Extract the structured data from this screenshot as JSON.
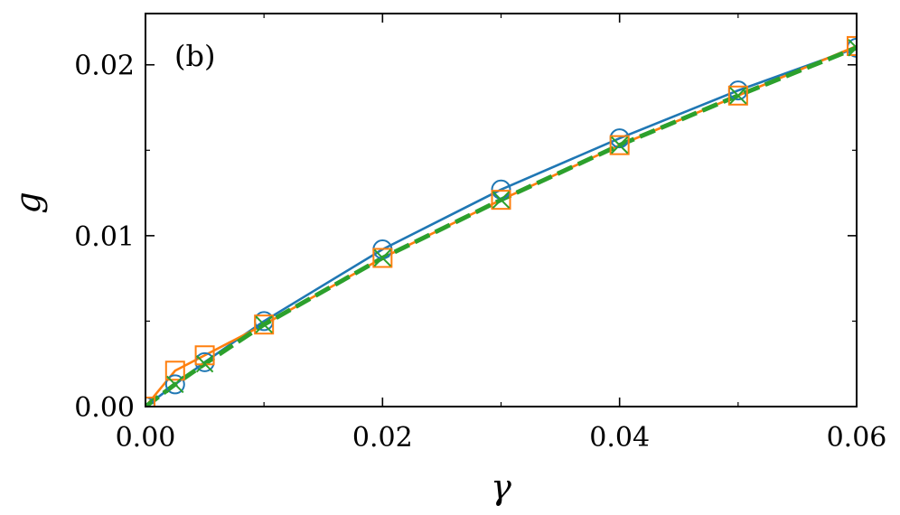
{
  "chart_data": {
    "type": "line",
    "panel_label": "(b)",
    "xlabel": "γ",
    "ylabel": "g",
    "xlim": [
      0.0,
      0.06
    ],
    "ylim": [
      0.0,
      0.023
    ],
    "x_ticks": [
      0.0,
      0.02,
      0.04,
      0.06
    ],
    "x_tick_labels": [
      "0.00",
      "0.02",
      "0.04",
      "0.06"
    ],
    "x_minor_ticks": [
      0.01,
      0.03,
      0.05
    ],
    "y_ticks": [
      0.0,
      0.01,
      0.02
    ],
    "y_tick_labels": [
      "0.00",
      "0.01",
      "0.02"
    ],
    "y_minor_ticks": [
      0.005,
      0.015
    ],
    "grid": false,
    "series": [
      {
        "color": "#1f77b4",
        "line_style": "solid",
        "marker": "circle",
        "x": [
          0.0,
          0.0025,
          0.005,
          0.01,
          0.02,
          0.03,
          0.04,
          0.05,
          0.06
        ],
        "y": [
          0.0,
          0.0013,
          0.0026,
          0.005,
          0.0092,
          0.0127,
          0.0157,
          0.0185,
          0.021
        ]
      },
      {
        "color": "#ff7f0e",
        "line_style": "solid",
        "marker": "square",
        "x": [
          0.0,
          0.0025,
          0.005,
          0.01,
          0.02,
          0.03,
          0.04,
          0.05,
          0.06
        ],
        "y": [
          0.0,
          0.0021,
          0.003,
          0.0048,
          0.0087,
          0.0121,
          0.0153,
          0.0182,
          0.0211
        ]
      },
      {
        "color": "#2ca02c",
        "line_style": "dashed",
        "marker": "x",
        "x": [
          0.0,
          0.0025,
          0.005,
          0.01,
          0.02,
          0.03,
          0.04,
          0.05,
          0.06
        ],
        "y": [
          0.0,
          0.0013,
          0.0025,
          0.0048,
          0.0087,
          0.0121,
          0.0153,
          0.0182,
          0.021
        ]
      }
    ]
  }
}
